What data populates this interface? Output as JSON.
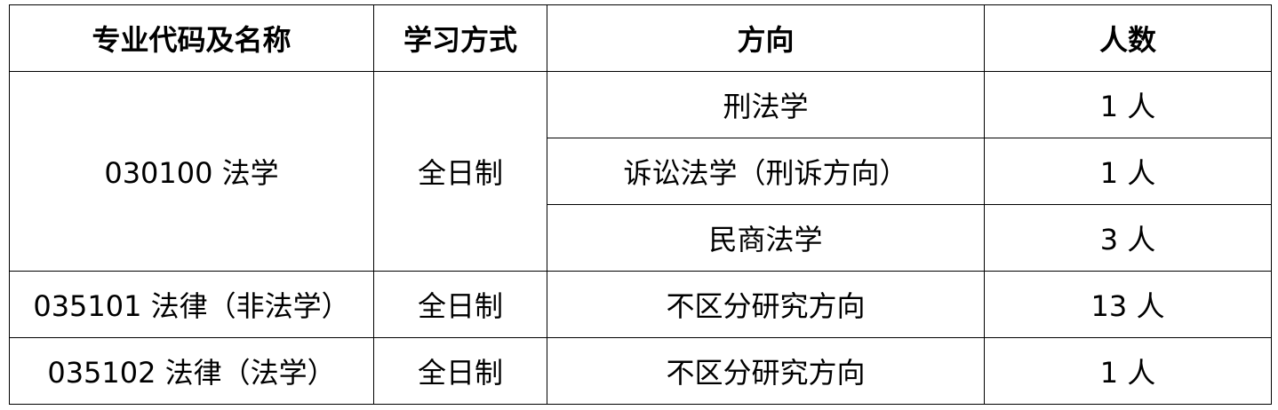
{
  "headers": [
    "专业代码及名称",
    "学习方式",
    "方向",
    "人数"
  ],
  "groups": [
    {
      "major": "030100 法学",
      "mode": "全日制",
      "rows": [
        {
          "direction": "刑法学",
          "count": "1 人"
        },
        {
          "direction": "诉讼法学（刑诉方向）",
          "count": "1 人"
        },
        {
          "direction": "民商法学",
          "count": "3 人"
        }
      ]
    },
    {
      "major": "035101  法律（非法学）",
      "mode": "全日制",
      "rows": [
        {
          "direction": "不区分研究方向",
          "count": "13 人"
        }
      ]
    },
    {
      "major": "035102  法律（法学）",
      "mode": "全日制",
      "rows": [
        {
          "direction": "不区分研究方向",
          "count": "1 人"
        }
      ]
    }
  ]
}
